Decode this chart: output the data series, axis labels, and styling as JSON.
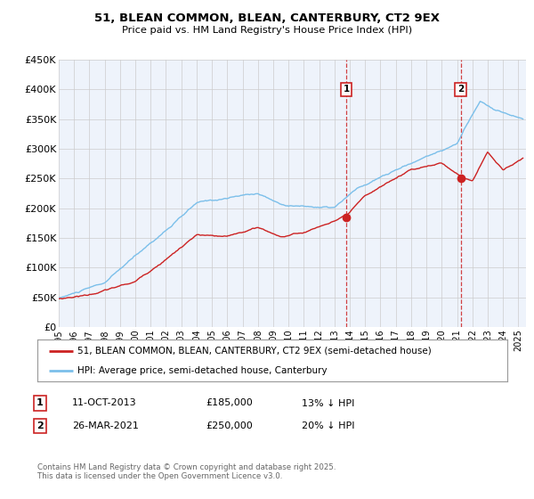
{
  "title": "51, BLEAN COMMON, BLEAN, CANTERBURY, CT2 9EX",
  "subtitle": "Price paid vs. HM Land Registry's House Price Index (HPI)",
  "hpi_color": "#7bbfea",
  "price_color": "#cc2222",
  "marker_color": "#cc2222",
  "background_color": "#ffffff",
  "plot_bg_color": "#eef3fb",
  "grid_color": "#cccccc",
  "ylim": [
    0,
    450000
  ],
  "yticks": [
    0,
    50000,
    100000,
    150000,
    200000,
    250000,
    300000,
    350000,
    400000,
    450000
  ],
  "ytick_labels": [
    "£0",
    "£50K",
    "£100K",
    "£150K",
    "£200K",
    "£250K",
    "£300K",
    "£350K",
    "£400K",
    "£450K"
  ],
  "xlim_start": 1995.0,
  "xlim_end": 2025.5,
  "marker1_x": 2013.78,
  "marker1_y": 185000,
  "marker2_x": 2021.23,
  "marker2_y": 250000,
  "marker1_label": "1",
  "marker2_label": "2",
  "event1_date": "11-OCT-2013",
  "event1_price": "£185,000",
  "event1_hpi": "13% ↓ HPI",
  "event2_date": "26-MAR-2021",
  "event2_price": "£250,000",
  "event2_hpi": "20% ↓ HPI",
  "legend_label_price": "51, BLEAN COMMON, BLEAN, CANTERBURY, CT2 9EX (semi-detached house)",
  "legend_label_hpi": "HPI: Average price, semi-detached house, Canterbury",
  "footer_text": "Contains HM Land Registry data © Crown copyright and database right 2025.\nThis data is licensed under the Open Government Licence v3.0.",
  "xtick_years": [
    1995,
    1996,
    1997,
    1998,
    1999,
    2000,
    2001,
    2002,
    2003,
    2004,
    2005,
    2006,
    2007,
    2008,
    2009,
    2010,
    2011,
    2012,
    2013,
    2014,
    2015,
    2016,
    2017,
    2018,
    2019,
    2020,
    2021,
    2022,
    2023,
    2024,
    2025
  ]
}
